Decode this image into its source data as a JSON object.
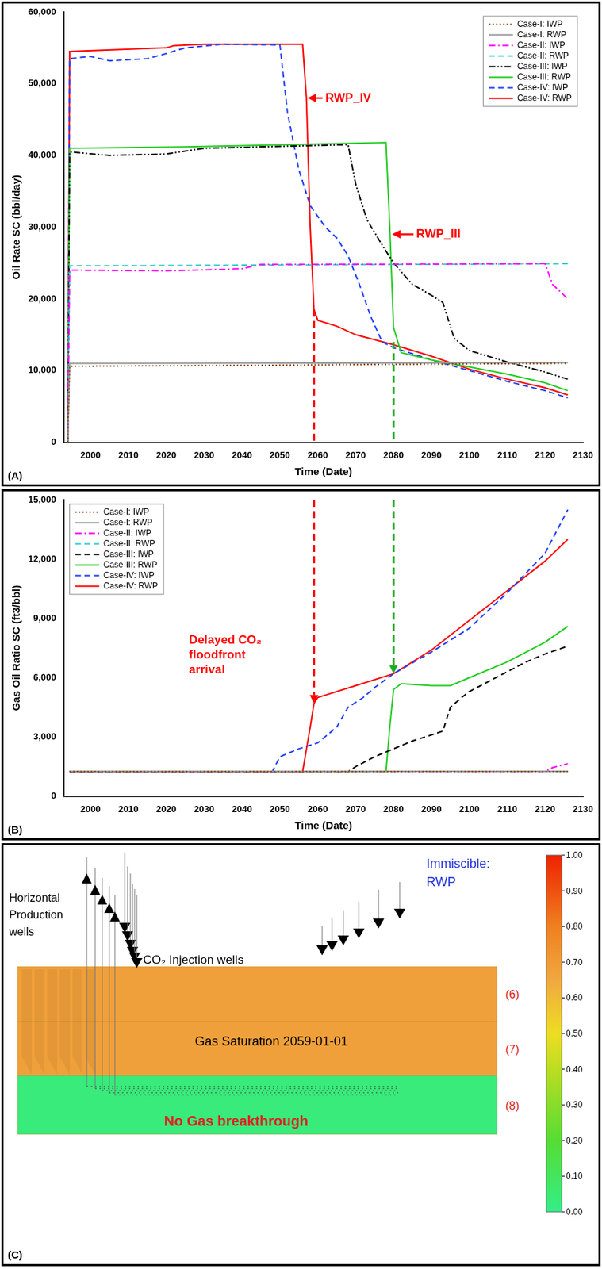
{
  "chart_data": [
    {
      "type": "line",
      "panel_label": "(A)",
      "x_label": "Time (Date)",
      "y_label": "Oil Rate SC (bbl/day)",
      "xlim": [
        1993,
        2130
      ],
      "xticks": [
        2000,
        2010,
        2020,
        2030,
        2040,
        2050,
        2060,
        2070,
        2080,
        2090,
        2100,
        2110,
        2120,
        2130
      ],
      "ylim": [
        0,
        60000
      ],
      "yticks": [
        0,
        {
          "value": 10000,
          "label": "10,000"
        },
        {
          "value": 20000,
          "label": "20,000"
        },
        {
          "value": 30000,
          "label": "30,000"
        },
        {
          "value": 40000,
          "label": "40,000"
        },
        {
          "value": 50000,
          "label": "50,000"
        },
        {
          "value": 60000,
          "label": "60,000"
        }
      ],
      "grid": false,
      "legend": "upper right",
      "series": [
        {
          "name": "Case-I: IWP",
          "color": "#8b4513",
          "line_style": "dotted",
          "x": [
            1994,
            1994.5,
            2030,
            2060,
            2090,
            2126
          ],
          "values": [
            0,
            10600,
            10700,
            10800,
            10900,
            11000
          ]
        },
        {
          "name": "Case-I: RWP",
          "color": "#999999",
          "line_style": "solid",
          "x": [
            1994,
            1994.5,
            2126
          ],
          "values": [
            0,
            11000,
            11100
          ]
        },
        {
          "name": "Case-II: IWP",
          "color": "#ff00ff",
          "line_style": "dashdot",
          "x": [
            1994,
            1994.5,
            2020,
            2040,
            2045,
            2120,
            2122,
            2126
          ],
          "values": [
            0,
            24000,
            23900,
            24200,
            24800,
            24900,
            22000,
            20000
          ]
        },
        {
          "name": "Case-II: RWP",
          "color": "#33cccc",
          "line_style": "dashed",
          "x": [
            1994,
            1994.5,
            2126
          ],
          "values": [
            0,
            24600,
            24900
          ]
        },
        {
          "name": "Case-III: IWP",
          "color": "#000000",
          "line_style": "dashdotdot",
          "x": [
            1994,
            1994.5,
            2005,
            2020,
            2030,
            2068,
            2070,
            2073,
            2077,
            2080,
            2085,
            2090,
            2093,
            2096,
            2100,
            2110,
            2120,
            2126
          ],
          "values": [
            0,
            40500,
            40000,
            40200,
            41000,
            41500,
            36000,
            31000,
            27500,
            25000,
            22000,
            20500,
            19500,
            14500,
            12800,
            11200,
            9800,
            8800
          ]
        },
        {
          "name": "Case-III: RWP",
          "color": "#22cc22",
          "line_style": "solid",
          "x": [
            1994,
            1994.5,
            2025,
            2078,
            2079,
            2080,
            2082,
            2090,
            2100,
            2110,
            2120,
            2126
          ],
          "values": [
            0,
            41000,
            41200,
            41800,
            30000,
            16000,
            12500,
            11500,
            10500,
            9500,
            8300,
            7200
          ]
        },
        {
          "name": "Case-IV: IWP",
          "color": "#1f3fff",
          "line_style": "dashed",
          "x": [
            1994,
            1994.5,
            2000,
            2005,
            2015,
            2020,
            2025,
            2035,
            2050,
            2052,
            2055,
            2058,
            2062,
            2065,
            2068,
            2071,
            2074,
            2077,
            2080,
            2090,
            2100,
            2110,
            2120,
            2126
          ],
          "values": [
            0,
            53500,
            53800,
            53200,
            53500,
            54200,
            55000,
            55500,
            55400,
            46000,
            38000,
            33000,
            30000,
            28500,
            26000,
            22000,
            17500,
            14000,
            13200,
            11500,
            10000,
            8500,
            7200,
            6200
          ]
        },
        {
          "name": "Case-IV: RWP",
          "color": "#ff0000",
          "line_style": "solid",
          "x": [
            1994,
            1994.5,
            2020,
            2022,
            2030,
            2056,
            2057,
            2058,
            2059,
            2060,
            2065,
            2070,
            2080,
            2090,
            2100,
            2110,
            2120,
            2126
          ],
          "values": [
            0,
            54500,
            55000,
            55300,
            55500,
            55500,
            48000,
            30000,
            18500,
            17000,
            16200,
            15000,
            13600,
            12000,
            10200,
            8800,
            7600,
            6600
          ]
        }
      ],
      "annotations": [
        {
          "text": "RWP_IV",
          "x": 2062,
          "y": 48000,
          "arrow_to": [
            2057.3,
            48000
          ],
          "color": "#ff0000"
        },
        {
          "text": "RWP_III",
          "x": 2086,
          "y": 29000,
          "arrow_to": [
            2079.6,
            29000
          ],
          "color": "#ff0000"
        }
      ],
      "guides": [
        {
          "x": 2059,
          "y": 18500,
          "color": "#ff0000"
        },
        {
          "x": 2080,
          "y": 14000,
          "color": "#22aa22"
        }
      ]
    },
    {
      "type": "line",
      "panel_label": "(B)",
      "x_label": "Time (Date)",
      "y_label": "Gas Oil Ratio SC (ft3/bbl)",
      "xlim": [
        1993,
        2130
      ],
      "xticks": [
        2000,
        2010,
        2020,
        2030,
        2040,
        2050,
        2060,
        2070,
        2080,
        2090,
        2100,
        2110,
        2120,
        2130
      ],
      "ylim": [
        0,
        15000
      ],
      "yticks": [
        0,
        {
          "value": 3000,
          "label": "3,000"
        },
        {
          "value": 6000,
          "label": "6,000"
        },
        {
          "value": 9000,
          "label": "9,000"
        },
        {
          "value": 12000,
          "label": "12,000"
        },
        {
          "value": 15000,
          "label": "15,000"
        }
      ],
      "grid": false,
      "legend": "upper left",
      "series": [
        {
          "name": "Case-I: IWP",
          "color": "#8b4513",
          "line_style": "dotted",
          "x": [
            1994.5,
            2126
          ],
          "values": [
            1250,
            1250
          ]
        },
        {
          "name": "Case-I: RWP",
          "color": "#999999",
          "line_style": "solid",
          "x": [
            1994.5,
            2126
          ],
          "values": [
            1260,
            1260
          ]
        },
        {
          "name": "Case-II: IWP",
          "color": "#ff00ff",
          "line_style": "dashdot",
          "x": [
            1994.5,
            2120,
            2122,
            2126
          ],
          "values": [
            1250,
            1250,
            1450,
            1650
          ]
        },
        {
          "name": "Case-II: RWP",
          "color": "#33cccc",
          "line_style": "dashed",
          "x": [
            1994.5,
            2126
          ],
          "values": [
            1250,
            1250
          ]
        },
        {
          "name": "Case-III: IWP",
          "color": "#000000",
          "line_style": "dashed",
          "x": [
            1994.5,
            2068,
            2070,
            2075,
            2080,
            2085,
            2090,
            2093,
            2095,
            2098,
            2100,
            2105,
            2110,
            2115,
            2120,
            2126
          ],
          "values": [
            1250,
            1250,
            1500,
            2000,
            2400,
            2800,
            3100,
            3300,
            4500,
            5000,
            5300,
            5800,
            6300,
            6800,
            7200,
            7600
          ]
        },
        {
          "name": "Case-III: RWP",
          "color": "#22cc22",
          "line_style": "solid",
          "x": [
            1994.5,
            2078,
            2079,
            2080,
            2082,
            2090,
            2095,
            2100,
            2110,
            2120,
            2126
          ],
          "values": [
            1250,
            1250,
            3500,
            5400,
            5700,
            5600,
            5600,
            6000,
            6800,
            7800,
            8600
          ]
        },
        {
          "name": "Case-IV: IWP",
          "color": "#1f3fff",
          "line_style": "dashed",
          "x": [
            1994.5,
            2048,
            2050,
            2055,
            2060,
            2065,
            2068,
            2072,
            2075,
            2080,
            2090,
            2100,
            2110,
            2120,
            2126
          ],
          "values": [
            1250,
            1250,
            2000,
            2400,
            2700,
            3500,
            4500,
            5000,
            5500,
            6200,
            7300,
            8500,
            10300,
            12300,
            14500
          ]
        },
        {
          "name": "Case-IV: RWP",
          "color": "#ff0000",
          "line_style": "solid",
          "x": [
            1994.5,
            2056,
            2058,
            2059,
            2060,
            2070,
            2080,
            2090,
            2100,
            2110,
            2120,
            2126
          ],
          "values": [
            1250,
            1250,
            3500,
            4700,
            5000,
            5600,
            6200,
            7400,
            8900,
            10400,
            11900,
            13000
          ]
        }
      ],
      "annotations": [
        {
          "text": "Delayed CO₂ floodfront arrival",
          "x": 2026,
          "y": 8200,
          "color": "#ff0000"
        }
      ],
      "guides": [
        {
          "x": 2059,
          "y": 4700,
          "color": "#ff0000"
        },
        {
          "x": 2080,
          "y": 6200,
          "color": "#22aa22"
        }
      ]
    }
  ],
  "reservoir_view": {
    "panel_label": "(C)",
    "title": "Immiscible: RWP",
    "production_wells": "Horizontal Production wells",
    "injection_wells": "CO₂ Injection wells",
    "snapshot": "Gas Saturation 2059-01-01",
    "note": "No Gas breakthrough",
    "layers": [
      {
        "label": "(6)",
        "gas_saturation": 0.68
      },
      {
        "label": "(7)",
        "gas_saturation": 0.68
      },
      {
        "label": "(8)",
        "gas_saturation": 0.03
      }
    ],
    "colorbar": {
      "range": [
        0,
        1
      ],
      "ticks": [
        {
          "value": 0,
          "label": "0.00"
        },
        {
          "value": 0.1,
          "label": "0.10"
        },
        {
          "value": 0.2,
          "label": "0.20"
        },
        {
          "value": 0.3,
          "label": "0.30"
        },
        {
          "value": 0.4,
          "label": "0.40"
        },
        {
          "value": 0.5,
          "label": "0.50"
        },
        {
          "value": 0.6,
          "label": "0.60"
        },
        {
          "value": 0.7,
          "label": "0.70"
        },
        {
          "value": 0.8,
          "label": "0.80"
        },
        {
          "value": 0.9,
          "label": "0.90"
        },
        {
          "value": 1,
          "label": "1.00"
        }
      ]
    }
  }
}
